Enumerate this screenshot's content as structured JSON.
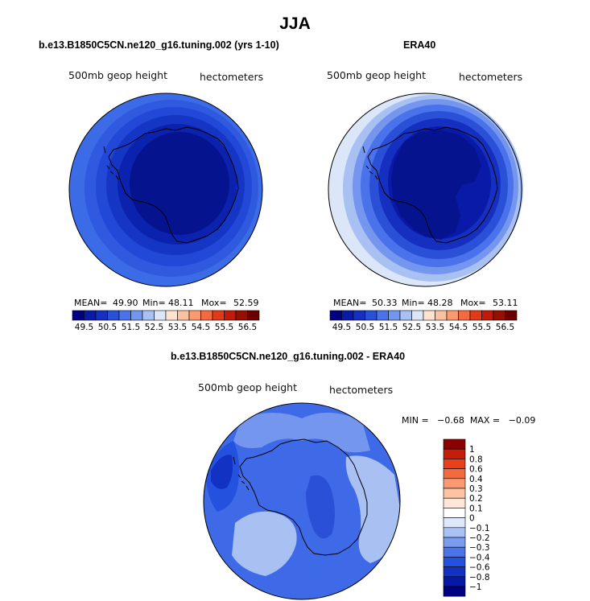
{
  "figure": {
    "title": "JJA"
  },
  "panels": [
    {
      "title": "b.e13.B1850C5CN.ne120_g16.tuning.002 (yrs 1-10)",
      "variable": "500mb geop height",
      "units": "hectometers",
      "stats": {
        "mean_label": "MEAN=",
        "mean": "49.90",
        "min_label": "Min=",
        "min": "48.11",
        "max_label": "Mox=",
        "max": "52.59"
      }
    },
    {
      "title": "ERA40",
      "variable": "500mb geop height",
      "units": "hectometers",
      "stats": {
        "mean_label": "MEAN=",
        "mean": "50.33",
        "min_label": "Min=",
        "min": "48.28",
        "max_label": "Mox=",
        "max": "53.11"
      }
    },
    {
      "title": "b.e13.B1850C5CN.ne120_g16.tuning.002 - ERA40",
      "variable": "500mb geop height",
      "units": "hectometers",
      "stats": {
        "text": "MIN =   −0.68  MAX =   −0.09"
      }
    }
  ],
  "chart_data": [
    {
      "type": "heatmap",
      "projection": "polar-stereographic (south pole)",
      "title": "b.e13.B1850C5CN.ne120_g16.tuning.002 (yrs 1-10)",
      "field": "500mb geop height",
      "units": "hectometers",
      "mean": 49.9,
      "min": 48.11,
      "max": 52.59,
      "levels": [
        49.5,
        50.0,
        50.5,
        51.0,
        51.5,
        52.0,
        52.5,
        53.0,
        53.5,
        54.0,
        54.5,
        55.0,
        55.5,
        56.0,
        56.5
      ],
      "colorbar_tick_labels": [
        "49.5",
        "50.5",
        "51.5",
        "52.5",
        "53.5",
        "54.5",
        "55.5",
        "56.5"
      ],
      "colors": [
        "#000080",
        "#0a1aa8",
        "#1530c0",
        "#2a50d8",
        "#4a72ea",
        "#7496ef",
        "#a8c0f2",
        "#dbe6f8",
        "#fde3d0",
        "#fbc2a0",
        "#f99a70",
        "#f46a40",
        "#e33a18",
        "#c21a0a",
        "#961000",
        "#6a0000"
      ]
    },
    {
      "type": "heatmap",
      "projection": "polar-stereographic (south pole)",
      "title": "ERA40",
      "field": "500mb geop height",
      "units": "hectometers",
      "mean": 50.33,
      "min": 48.28,
      "max": 53.11,
      "levels": [
        49.5,
        50.0,
        50.5,
        51.0,
        51.5,
        52.0,
        52.5,
        53.0,
        53.5,
        54.0,
        54.5,
        55.0,
        55.5,
        56.0,
        56.5
      ],
      "colorbar_tick_labels": [
        "49.5",
        "50.5",
        "51.5",
        "52.5",
        "53.5",
        "54.5",
        "55.5",
        "56.5"
      ],
      "colors": [
        "#000080",
        "#0a1aa8",
        "#1530c0",
        "#2a50d8",
        "#4a72ea",
        "#7496ef",
        "#a8c0f2",
        "#dbe6f8",
        "#fde3d0",
        "#fbc2a0",
        "#f99a70",
        "#f46a40",
        "#e33a18",
        "#c21a0a",
        "#961000",
        "#6a0000"
      ]
    },
    {
      "type": "heatmap",
      "projection": "polar-stereographic (south pole)",
      "title": "b.e13.B1850C5CN.ne120_g16.tuning.002 - ERA40",
      "field": "500mb geop height",
      "units": "hectometers",
      "min": -0.68,
      "max": -0.09,
      "levels": [
        -1,
        -0.8,
        -0.6,
        -0.4,
        -0.3,
        -0.2,
        -0.1,
        0,
        0.1,
        0.2,
        0.3,
        0.4,
        0.6,
        0.8,
        1
      ],
      "colorbar_tick_labels": [
        "1",
        "0.8",
        "0.6",
        "0.4",
        "0.3",
        "0.2",
        "0.1",
        "0",
        "−0.1",
        "−0.2",
        "−0.3",
        "−0.4",
        "−0.6",
        "−0.8",
        "−1"
      ],
      "colors_top_to_bottom": [
        "#8b0000",
        "#c41e0a",
        "#e8401a",
        "#f56a3c",
        "#fb9a72",
        "#fdc4a4",
        "#ffe6d6",
        "#ffffff",
        "#dfe8fa",
        "#aac2f2",
        "#7a9cf0",
        "#4b74ea",
        "#2452de",
        "#1232c4",
        "#0818a4",
        "#000080"
      ]
    }
  ]
}
